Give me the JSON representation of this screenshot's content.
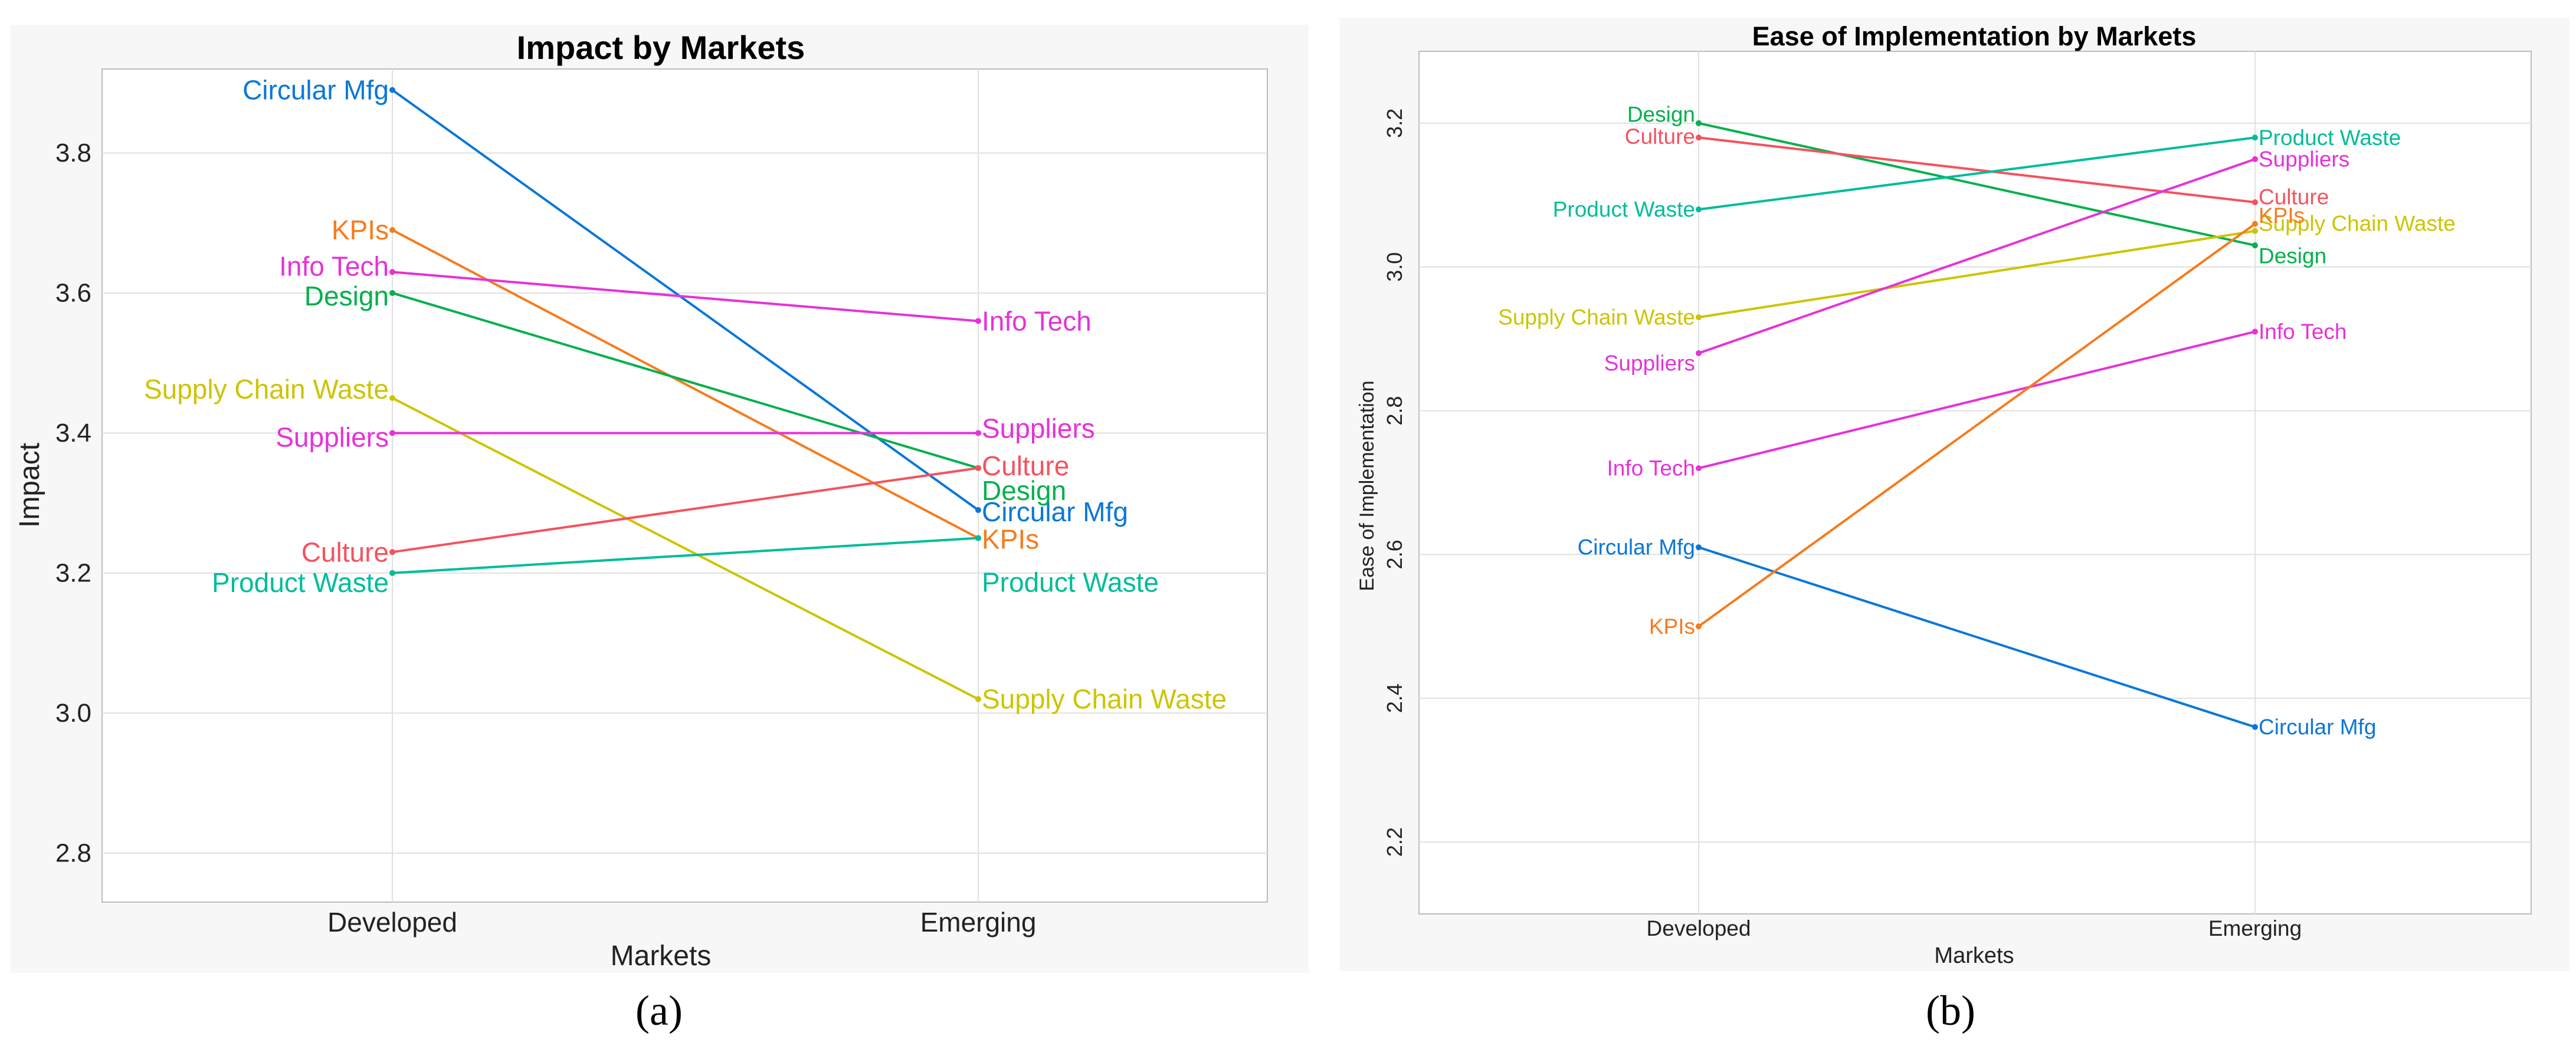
{
  "colors": {
    "Circular Mfg": "#0a77d8",
    "KPIs": "#f77b1c",
    "Info Tech": "#e532d9",
    "Design": "#03b04c",
    "Supply Chain Waste": "#cdc400",
    "Suppliers": "#e532d9",
    "Culture": "#f4525e",
    "Product Waste": "#00bc9a"
  },
  "captions": [
    "(a)",
    "(b)"
  ],
  "chart_data": [
    {
      "type": "line",
      "title": "Impact by Markets",
      "xlabel": "Markets",
      "ylabel": "Impact",
      "categories": [
        "Developed",
        "Emerging"
      ],
      "ylim": [
        2.73,
        3.92
      ],
      "yticks": [
        "2.8",
        "3.0",
        "3.2",
        "3.4",
        "3.6",
        "3.8"
      ],
      "series": [
        {
          "name": "Circular Mfg",
          "values": [
            3.89,
            3.29
          ]
        },
        {
          "name": "KPIs",
          "values": [
            3.69,
            3.25
          ]
        },
        {
          "name": "Info Tech",
          "values": [
            3.63,
            3.56
          ]
        },
        {
          "name": "Design",
          "values": [
            3.6,
            3.35
          ]
        },
        {
          "name": "Supply Chain Waste",
          "values": [
            3.45,
            3.02
          ]
        },
        {
          "name": "Suppliers",
          "values": [
            3.4,
            3.4
          ]
        },
        {
          "name": "Culture",
          "values": [
            3.23,
            3.35
          ]
        },
        {
          "name": "Product Waste",
          "values": [
            3.2,
            3.25
          ]
        }
      ]
    },
    {
      "type": "line",
      "title": "Ease of Implementation by Markets",
      "xlabel": "Markets",
      "ylabel": "Ease of Implementation",
      "categories": [
        "Developed",
        "Emerging"
      ],
      "ylim": [
        2.1,
        3.3
      ],
      "yticks": [
        "2.2",
        "2.4",
        "2.6",
        "2.8",
        "3.0",
        "3.2"
      ],
      "series": [
        {
          "name": "Design",
          "values": [
            3.2,
            3.03
          ]
        },
        {
          "name": "Culture",
          "values": [
            3.18,
            3.09
          ]
        },
        {
          "name": "Product Waste",
          "values": [
            3.08,
            3.18
          ]
        },
        {
          "name": "Supply Chain Waste",
          "values": [
            2.93,
            3.05
          ]
        },
        {
          "name": "Suppliers",
          "values": [
            2.88,
            3.15
          ]
        },
        {
          "name": "Info Tech",
          "values": [
            2.72,
            2.91
          ]
        },
        {
          "name": "Circular Mfg",
          "values": [
            2.61,
            2.36
          ]
        },
        {
          "name": "KPIs",
          "values": [
            2.5,
            3.06
          ]
        }
      ]
    }
  ]
}
